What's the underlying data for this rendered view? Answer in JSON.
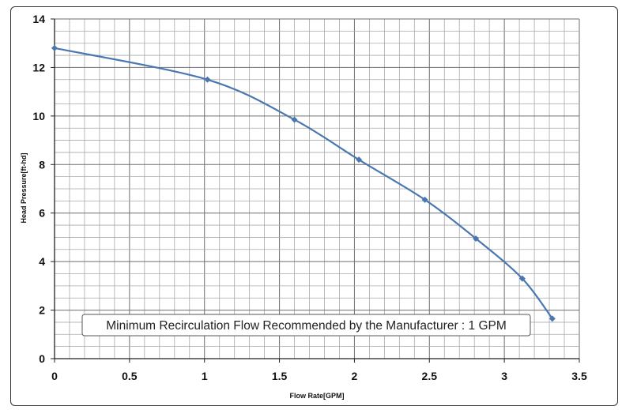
{
  "chart_data": {
    "type": "line",
    "title": "",
    "xlabel": "Flow Rate[GPM]",
    "ylabel": "Head Pressure[ft-hd]",
    "xlim": [
      0,
      3.5
    ],
    "ylim": [
      0,
      14
    ],
    "x_ticks": [
      0,
      0.5,
      1,
      1.5,
      2,
      2.5,
      3,
      3.5
    ],
    "x_tick_labels": [
      "0",
      "0.5",
      "1",
      "1.5",
      "2",
      "2.5",
      "3",
      "3.5"
    ],
    "y_ticks": [
      0,
      2,
      4,
      6,
      8,
      10,
      12,
      14
    ],
    "y_tick_labels": [
      "0",
      "2",
      "4",
      "6",
      "8",
      "10",
      "12",
      "14"
    ],
    "grid": true,
    "minor_grid_x_step": 0.1,
    "minor_grid_y_step": 0.5,
    "series": [
      {
        "name": "Head Pressure",
        "color": "#4a77b0",
        "marker": "diamond",
        "x": [
          0,
          1.02,
          1.6,
          2.03,
          2.47,
          2.81,
          3.12,
          3.32
        ],
        "y": [
          12.8,
          11.5,
          9.85,
          8.2,
          6.55,
          4.95,
          3.3,
          1.65
        ]
      }
    ],
    "annotation": "Minimum Recirculation Flow Recommended by the Manufacturer : 1 GPM"
  }
}
